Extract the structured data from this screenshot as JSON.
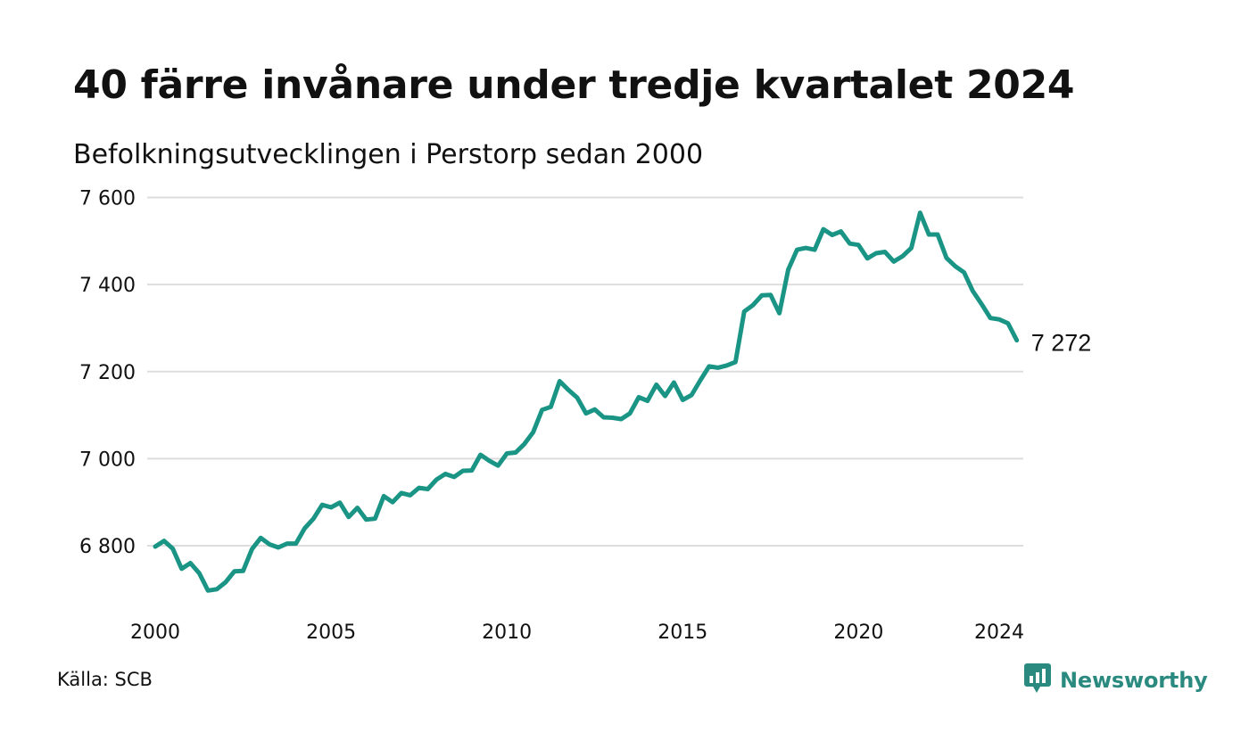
{
  "title": "40 färre invånare under tredje kvartalet 2024",
  "subtitle": "Befolkningsutvecklingen i Perstorp sedan 2000",
  "source": "Källa: SCB",
  "brand": {
    "name": "Newsworthy",
    "icon": "newsworthy-logo-icon",
    "color": "#2a8a80"
  },
  "chart_data": {
    "type": "line",
    "title": "40 färre invånare under tredje kvartalet 2024",
    "subtitle": "Befolkningsutvecklingen i Perstorp sedan 2000",
    "xlabel": "",
    "ylabel": "",
    "xlim": [
      2000,
      2024.75
    ],
    "ylim": [
      6670,
      7620
    ],
    "x_ticks": [
      2000,
      2005,
      2010,
      2015,
      2020,
      2024
    ],
    "x_tick_labels": [
      "2000",
      "2005",
      "2010",
      "2015",
      "2020",
      "2024"
    ],
    "y_ticks": [
      6800,
      7000,
      7200,
      7400,
      7600
    ],
    "y_tick_labels": [
      "6 800",
      "7 000",
      "7 200",
      "7 400",
      "7 600"
    ],
    "grid": "horizontal",
    "line_color": "#1a9585",
    "end_label": "7 272",
    "series": [
      {
        "x": [
          2000.0,
          2000.25,
          2000.5,
          2000.75,
          2001.0,
          2001.25,
          2001.5,
          2001.75,
          2002.0,
          2002.25,
          2002.5,
          2002.75,
          2003.0,
          2003.25,
          2003.5,
          2003.75,
          2004.0,
          2004.25,
          2004.5,
          2004.75,
          2005.0,
          2005.25,
          2005.5,
          2005.75,
          2006.0,
          2006.25,
          2006.5,
          2006.75,
          2007.0,
          2007.25,
          2007.5,
          2007.75,
          2008.0,
          2008.25,
          2008.5,
          2008.75,
          2009.0,
          2009.25,
          2009.5,
          2009.75,
          2010.0,
          2010.25,
          2010.5,
          2010.75,
          2011.0,
          2011.25,
          2011.5,
          2011.75,
          2012.0,
          2012.25,
          2012.5,
          2012.75,
          2013.0,
          2013.25,
          2013.5,
          2013.75,
          2014.0,
          2014.25,
          2014.5,
          2014.75,
          2015.0,
          2015.25,
          2015.5,
          2015.75,
          2016.0,
          2016.25,
          2016.5,
          2016.75,
          2017.0,
          2017.25,
          2017.5,
          2017.75,
          2018.0,
          2018.25,
          2018.5,
          2018.75,
          2019.0,
          2019.25,
          2019.5,
          2019.75,
          2020.0,
          2020.25,
          2020.5,
          2020.75,
          2021.0,
          2021.25,
          2021.5,
          2021.75,
          2022.0,
          2022.25,
          2022.5,
          2022.75,
          2023.0,
          2023.25,
          2023.5,
          2023.75,
          2024.0,
          2024.25,
          2024.5
        ],
        "values": [
          6798,
          6811,
          6793,
          6747,
          6760,
          6737,
          6697,
          6700,
          6716,
          6741,
          6742,
          6792,
          6818,
          6803,
          6796,
          6805,
          6805,
          6840,
          6862,
          6894,
          6888,
          6899,
          6866,
          6887,
          6860,
          6862,
          6914,
          6900,
          6921,
          6916,
          6933,
          6930,
          6952,
          6965,
          6958,
          6972,
          6973,
          7009,
          6995,
          6984,
          7012,
          7014,
          7034,
          7061,
          7112,
          7119,
          7178,
          7158,
          7140,
          7104,
          7113,
          7095,
          7094,
          7091,
          7104,
          7141,
          7133,
          7170,
          7144,
          7175,
          7135,
          7146,
          7180,
          7212,
          7209,
          7214,
          7222,
          7338,
          7353,
          7375,
          7376,
          7334,
          7434,
          7480,
          7484,
          7480,
          7527,
          7514,
          7522,
          7494,
          7491,
          7460,
          7472,
          7475,
          7453,
          7465,
          7484,
          7565,
          7515,
          7515,
          7461,
          7442,
          7428,
          7385,
          7355,
          7323,
          7320,
          7311,
          7272
        ]
      }
    ]
  }
}
